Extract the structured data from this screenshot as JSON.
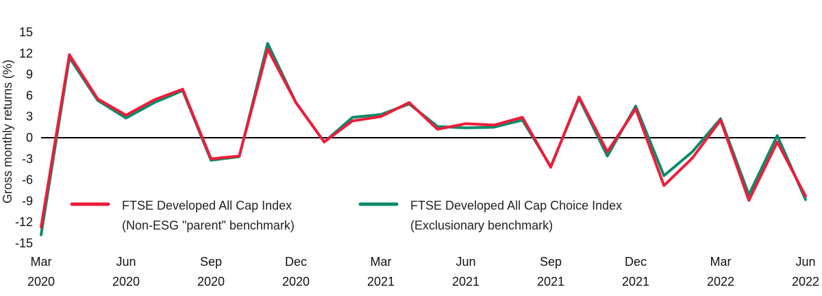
{
  "chart_data": {
    "type": "line",
    "ylabel": "Gross monthly returns (%)",
    "xlabel": "",
    "ylim": [
      -15,
      15
    ],
    "yticks": [
      "15",
      "12",
      "9",
      "6",
      "3",
      "0",
      "-3",
      "-6",
      "-9",
      "-12",
      "-15"
    ],
    "xtick_labels": [
      {
        "month": "Mar",
        "year": "2020",
        "index": 0
      },
      {
        "month": "Jun",
        "year": "2020",
        "index": 3
      },
      {
        "month": "Sep",
        "year": "2020",
        "index": 6
      },
      {
        "month": "Dec",
        "year": "2020",
        "index": 9
      },
      {
        "month": "Mar",
        "year": "2021",
        "index": 12
      },
      {
        "month": "Jun",
        "year": "2021",
        "index": 15
      },
      {
        "month": "Sep",
        "year": "2021",
        "index": 18
      },
      {
        "month": "Dec",
        "year": "2021",
        "index": 21
      },
      {
        "month": "Mar",
        "year": "2022",
        "index": 24
      },
      {
        "month": "Jun",
        "year": "2022",
        "index": 27
      }
    ],
    "x": [
      "Mar 2020",
      "Apr 2020",
      "May 2020",
      "Jun 2020",
      "Jul 2020",
      "Aug 2020",
      "Sep 2020",
      "Oct 2020",
      "Nov 2020",
      "Dec 2020",
      "Jan 2021",
      "Feb 2021",
      "Mar 2021",
      "Apr 2021",
      "May 2021",
      "Jun 2021",
      "Jul 2021",
      "Aug 2021",
      "Sep 2021",
      "Oct 2021",
      "Nov 2021",
      "Dec 2021",
      "Jan 2022",
      "Feb 2022",
      "Mar 2022",
      "Apr 2022",
      "May 2022",
      "Jun 2022"
    ],
    "zero_line": true,
    "grid": false,
    "legend_position": "bottom-left",
    "series": [
      {
        "name": "FTSE Developed All Cap Index",
        "subtitle": "(Non-ESG \"parent\" benchmark)",
        "color": "#ee1c3a",
        "values": [
          -12.7,
          11.8,
          5.5,
          3.2,
          5.4,
          6.9,
          -3.0,
          -2.6,
          12.6,
          5.0,
          -0.6,
          2.4,
          3.0,
          5.0,
          1.2,
          2.0,
          1.8,
          2.9,
          -4.2,
          5.8,
          -2.0,
          4.1,
          -6.8,
          -2.9,
          2.5,
          -8.9,
          -0.6,
          -8.3
        ]
      },
      {
        "name": "FTSE Developed All Cap Choice Index",
        "subtitle": "(Exclusionary benchmark)",
        "color": "#0c8a6a",
        "values": [
          -13.8,
          11.4,
          5.3,
          2.8,
          5.0,
          6.7,
          -3.2,
          -2.7,
          13.4,
          5.0,
          -0.6,
          2.9,
          3.3,
          4.8,
          1.6,
          1.4,
          1.5,
          2.5,
          -4.1,
          5.6,
          -2.6,
          4.5,
          -5.4,
          -2.0,
          2.7,
          -8.1,
          0.3,
          -8.8
        ]
      }
    ]
  }
}
